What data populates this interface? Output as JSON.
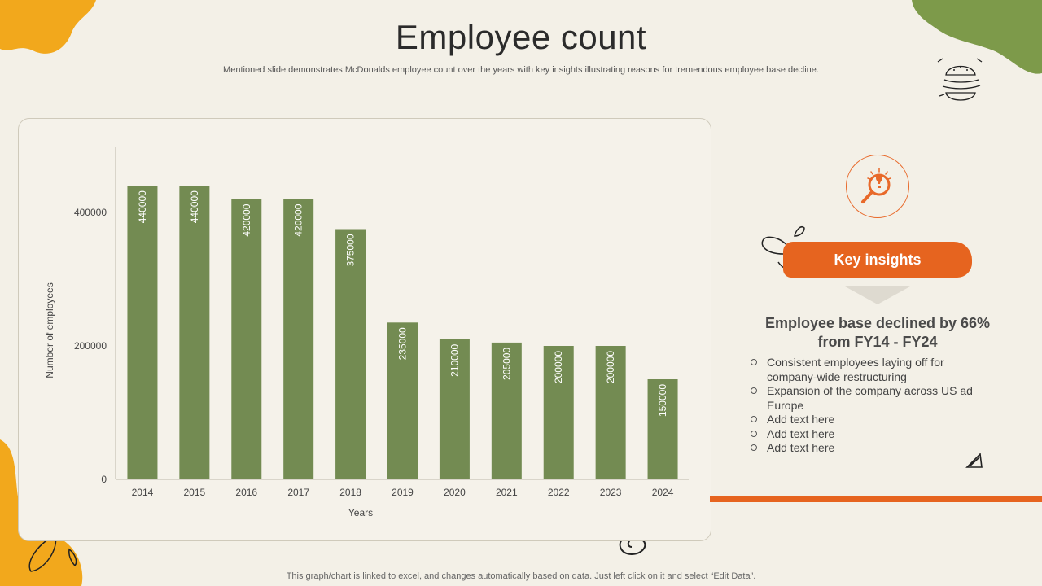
{
  "title": "Employee count",
  "subtitle": "Mentioned slide demonstrates McDonalds employee count over the years with key insights illustrating reasons for tremendous employee base decline.",
  "colors": {
    "bar": "#738b52",
    "accent": "#e6641f",
    "olive": "#7d9a4a",
    "yellow": "#f2a81c",
    "background": "#f3f0e7"
  },
  "chart_data": {
    "type": "bar",
    "categories": [
      "2014",
      "2015",
      "2016",
      "2017",
      "2018",
      "2019",
      "2020",
      "2021",
      "2022",
      "2023",
      "2024"
    ],
    "values": [
      440000,
      440000,
      420000,
      420000,
      375000,
      235000,
      210000,
      205000,
      200000,
      200000,
      150000
    ],
    "xlabel": "Years",
    "ylabel": "Number of employees",
    "yticks": [
      0,
      200000,
      400000
    ],
    "ylim": [
      0,
      500000
    ],
    "data_labels": true,
    "legend": "none",
    "grid": false
  },
  "insights": {
    "banner_label": "Key insights",
    "heading_line1": "Employee base declined by 66%",
    "heading_line2": "from FY14 - FY24",
    "items": [
      "Consistent employees laying off for company-wide restructuring",
      "Expansion of the company across US ad Europe",
      "Add text here",
      "Add text here",
      "Add text here"
    ]
  },
  "icons": {
    "insight": "lightbulb-magnifier-icon",
    "burger": "burger-doodle-icon"
  },
  "footer": "This graph/chart is linked to excel, and changes automatically based on data. Just left click on it and select “Edit Data”."
}
